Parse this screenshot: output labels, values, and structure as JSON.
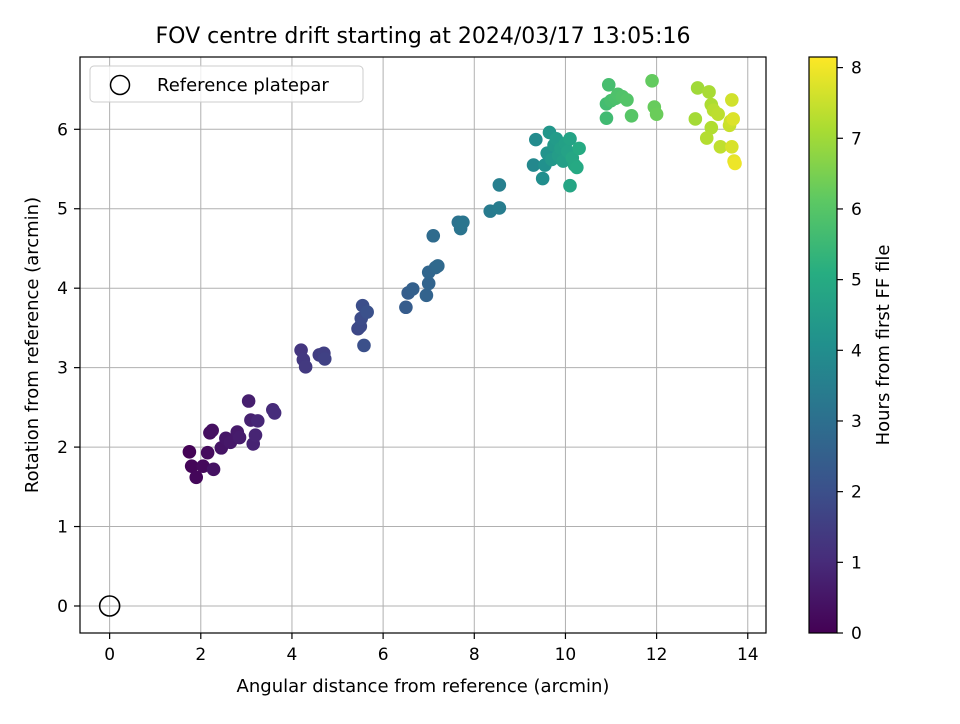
{
  "chart_data": {
    "type": "scatter",
    "title": "FOV centre drift starting at 2024/03/17 13:05:16",
    "xlabel": "Angular distance from reference (arcmin)",
    "ylabel": "Rotation from reference (arcmin)",
    "xlim": [
      -0.65,
      14.4
    ],
    "ylim": [
      -0.34,
      6.91
    ],
    "xticks": [
      0,
      2,
      4,
      6,
      8,
      10,
      12,
      14
    ],
    "yticks": [
      0,
      1,
      2,
      3,
      4,
      5,
      6
    ],
    "grid": true,
    "legend": {
      "placement": "top-left",
      "entries": [
        "Reference platepar"
      ]
    },
    "reference_point": {
      "label": "Reference platepar",
      "x": 0,
      "y": 0,
      "style": "open-circle",
      "color": "#000000"
    },
    "colorbar": {
      "label": "Hours from first FF file",
      "range": [
        0,
        8.15
      ],
      "ticks": [
        0,
        1,
        2,
        3,
        4,
        5,
        6,
        7,
        8
      ],
      "colormap": "viridis"
    },
    "series": [
      {
        "color_by": "hours",
        "points": [
          {
            "x": 1.75,
            "y": 1.94,
            "c": 0.05
          },
          {
            "x": 1.8,
            "y": 1.76,
            "c": 0.1
          },
          {
            "x": 1.9,
            "y": 1.62,
            "c": 0.15
          },
          {
            "x": 2.05,
            "y": 1.76,
            "c": 0.2
          },
          {
            "x": 2.15,
            "y": 1.93,
            "c": 0.25
          },
          {
            "x": 2.2,
            "y": 2.18,
            "c": 0.3
          },
          {
            "x": 2.25,
            "y": 2.21,
            "c": 0.35
          },
          {
            "x": 2.28,
            "y": 1.72,
            "c": 0.4
          },
          {
            "x": 2.45,
            "y": 1.99,
            "c": 0.45
          },
          {
            "x": 2.55,
            "y": 2.11,
            "c": 0.5
          },
          {
            "x": 2.65,
            "y": 2.06,
            "c": 0.55
          },
          {
            "x": 2.8,
            "y": 2.19,
            "c": 0.6
          },
          {
            "x": 2.85,
            "y": 2.12,
            "c": 0.65
          },
          {
            "x": 3.05,
            "y": 2.58,
            "c": 0.7
          },
          {
            "x": 3.1,
            "y": 2.34,
            "c": 0.75
          },
          {
            "x": 3.15,
            "y": 2.04,
            "c": 0.8
          },
          {
            "x": 3.2,
            "y": 2.15,
            "c": 0.85
          },
          {
            "x": 3.25,
            "y": 2.33,
            "c": 0.9
          },
          {
            "x": 3.58,
            "y": 2.47,
            "c": 1.0
          },
          {
            "x": 3.62,
            "y": 2.43,
            "c": 1.05
          },
          {
            "x": 4.2,
            "y": 3.22,
            "c": 1.3
          },
          {
            "x": 4.25,
            "y": 3.1,
            "c": 1.35
          },
          {
            "x": 4.3,
            "y": 3.01,
            "c": 1.4
          },
          {
            "x": 4.6,
            "y": 3.16,
            "c": 1.5
          },
          {
            "x": 4.7,
            "y": 3.18,
            "c": 1.55
          },
          {
            "x": 4.72,
            "y": 3.11,
            "c": 1.6
          },
          {
            "x": 5.45,
            "y": 3.49,
            "c": 1.8
          },
          {
            "x": 5.5,
            "y": 3.52,
            "c": 1.85
          },
          {
            "x": 5.52,
            "y": 3.62,
            "c": 1.9
          },
          {
            "x": 5.55,
            "y": 3.78,
            "c": 1.95
          },
          {
            "x": 5.58,
            "y": 3.28,
            "c": 2.0
          },
          {
            "x": 5.65,
            "y": 3.7,
            "c": 2.05
          },
          {
            "x": 6.5,
            "y": 3.76,
            "c": 2.4
          },
          {
            "x": 6.55,
            "y": 3.94,
            "c": 2.45
          },
          {
            "x": 6.65,
            "y": 3.99,
            "c": 2.5
          },
          {
            "x": 6.95,
            "y": 3.91,
            "c": 2.6
          },
          {
            "x": 7.0,
            "y": 4.06,
            "c": 2.65
          },
          {
            "x": 7.0,
            "y": 4.2,
            "c": 2.7
          },
          {
            "x": 7.15,
            "y": 4.26,
            "c": 2.75
          },
          {
            "x": 7.2,
            "y": 4.28,
            "c": 2.8
          },
          {
            "x": 7.1,
            "y": 4.66,
            "c": 2.85
          },
          {
            "x": 7.65,
            "y": 4.83,
            "c": 3.1
          },
          {
            "x": 7.7,
            "y": 4.75,
            "c": 3.15
          },
          {
            "x": 7.75,
            "y": 4.83,
            "c": 3.2
          },
          {
            "x": 8.35,
            "y": 4.97,
            "c": 3.4
          },
          {
            "x": 8.55,
            "y": 5.01,
            "c": 3.45
          },
          {
            "x": 8.55,
            "y": 5.3,
            "c": 3.5
          },
          {
            "x": 9.3,
            "y": 5.55,
            "c": 3.8
          },
          {
            "x": 9.35,
            "y": 5.87,
            "c": 3.9
          },
          {
            "x": 9.5,
            "y": 5.38,
            "c": 4.0
          },
          {
            "x": 9.55,
            "y": 5.55,
            "c": 4.1
          },
          {
            "x": 9.6,
            "y": 5.7,
            "c": 4.2
          },
          {
            "x": 9.65,
            "y": 5.96,
            "c": 4.3
          },
          {
            "x": 9.7,
            "y": 5.62,
            "c": 4.35
          },
          {
            "x": 9.75,
            "y": 5.8,
            "c": 4.4
          },
          {
            "x": 9.8,
            "y": 5.88,
            "c": 4.45
          },
          {
            "x": 9.85,
            "y": 5.67,
            "c": 4.5
          },
          {
            "x": 9.9,
            "y": 5.76,
            "c": 4.55
          },
          {
            "x": 9.95,
            "y": 5.6,
            "c": 4.6
          },
          {
            "x": 10.0,
            "y": 5.82,
            "c": 4.65
          },
          {
            "x": 10.05,
            "y": 5.72,
            "c": 4.7
          },
          {
            "x": 10.1,
            "y": 5.88,
            "c": 4.75
          },
          {
            "x": 10.1,
            "y": 5.29,
            "c": 4.8
          },
          {
            "x": 10.15,
            "y": 5.64,
            "c": 4.85
          },
          {
            "x": 10.2,
            "y": 5.55,
            "c": 4.9
          },
          {
            "x": 10.25,
            "y": 5.52,
            "c": 4.95
          },
          {
            "x": 10.3,
            "y": 5.76,
            "c": 5.0
          },
          {
            "x": 10.9,
            "y": 6.14,
            "c": 5.6
          },
          {
            "x": 10.9,
            "y": 6.32,
            "c": 5.65
          },
          {
            "x": 10.95,
            "y": 6.56,
            "c": 5.7
          },
          {
            "x": 11.0,
            "y": 6.36,
            "c": 5.75
          },
          {
            "x": 11.1,
            "y": 6.39,
            "c": 5.8
          },
          {
            "x": 11.15,
            "y": 6.44,
            "c": 5.85
          },
          {
            "x": 11.25,
            "y": 6.41,
            "c": 5.9
          },
          {
            "x": 11.35,
            "y": 6.37,
            "c": 5.95
          },
          {
            "x": 11.45,
            "y": 6.17,
            "c": 6.0
          },
          {
            "x": 11.9,
            "y": 6.61,
            "c": 6.2
          },
          {
            "x": 11.95,
            "y": 6.28,
            "c": 6.25
          },
          {
            "x": 12.0,
            "y": 6.19,
            "c": 6.3
          },
          {
            "x": 12.9,
            "y": 6.52,
            "c": 7.0
          },
          {
            "x": 12.85,
            "y": 6.13,
            "c": 7.05
          },
          {
            "x": 13.15,
            "y": 6.47,
            "c": 7.1
          },
          {
            "x": 13.2,
            "y": 6.31,
            "c": 7.15
          },
          {
            "x": 13.2,
            "y": 6.02,
            "c": 7.2
          },
          {
            "x": 13.1,
            "y": 5.89,
            "c": 7.25
          },
          {
            "x": 13.25,
            "y": 6.24,
            "c": 7.3
          },
          {
            "x": 13.35,
            "y": 6.19,
            "c": 7.35
          },
          {
            "x": 13.4,
            "y": 5.78,
            "c": 7.4
          },
          {
            "x": 13.6,
            "y": 6.05,
            "c": 7.5
          },
          {
            "x": 13.62,
            "y": 6.1,
            "c": 7.55
          },
          {
            "x": 13.65,
            "y": 6.37,
            "c": 7.6
          },
          {
            "x": 13.65,
            "y": 5.78,
            "c": 7.7
          },
          {
            "x": 13.68,
            "y": 6.13,
            "c": 7.75
          },
          {
            "x": 13.7,
            "y": 5.6,
            "c": 7.85
          },
          {
            "x": 13.72,
            "y": 5.57,
            "c": 7.95
          }
        ]
      }
    ]
  }
}
